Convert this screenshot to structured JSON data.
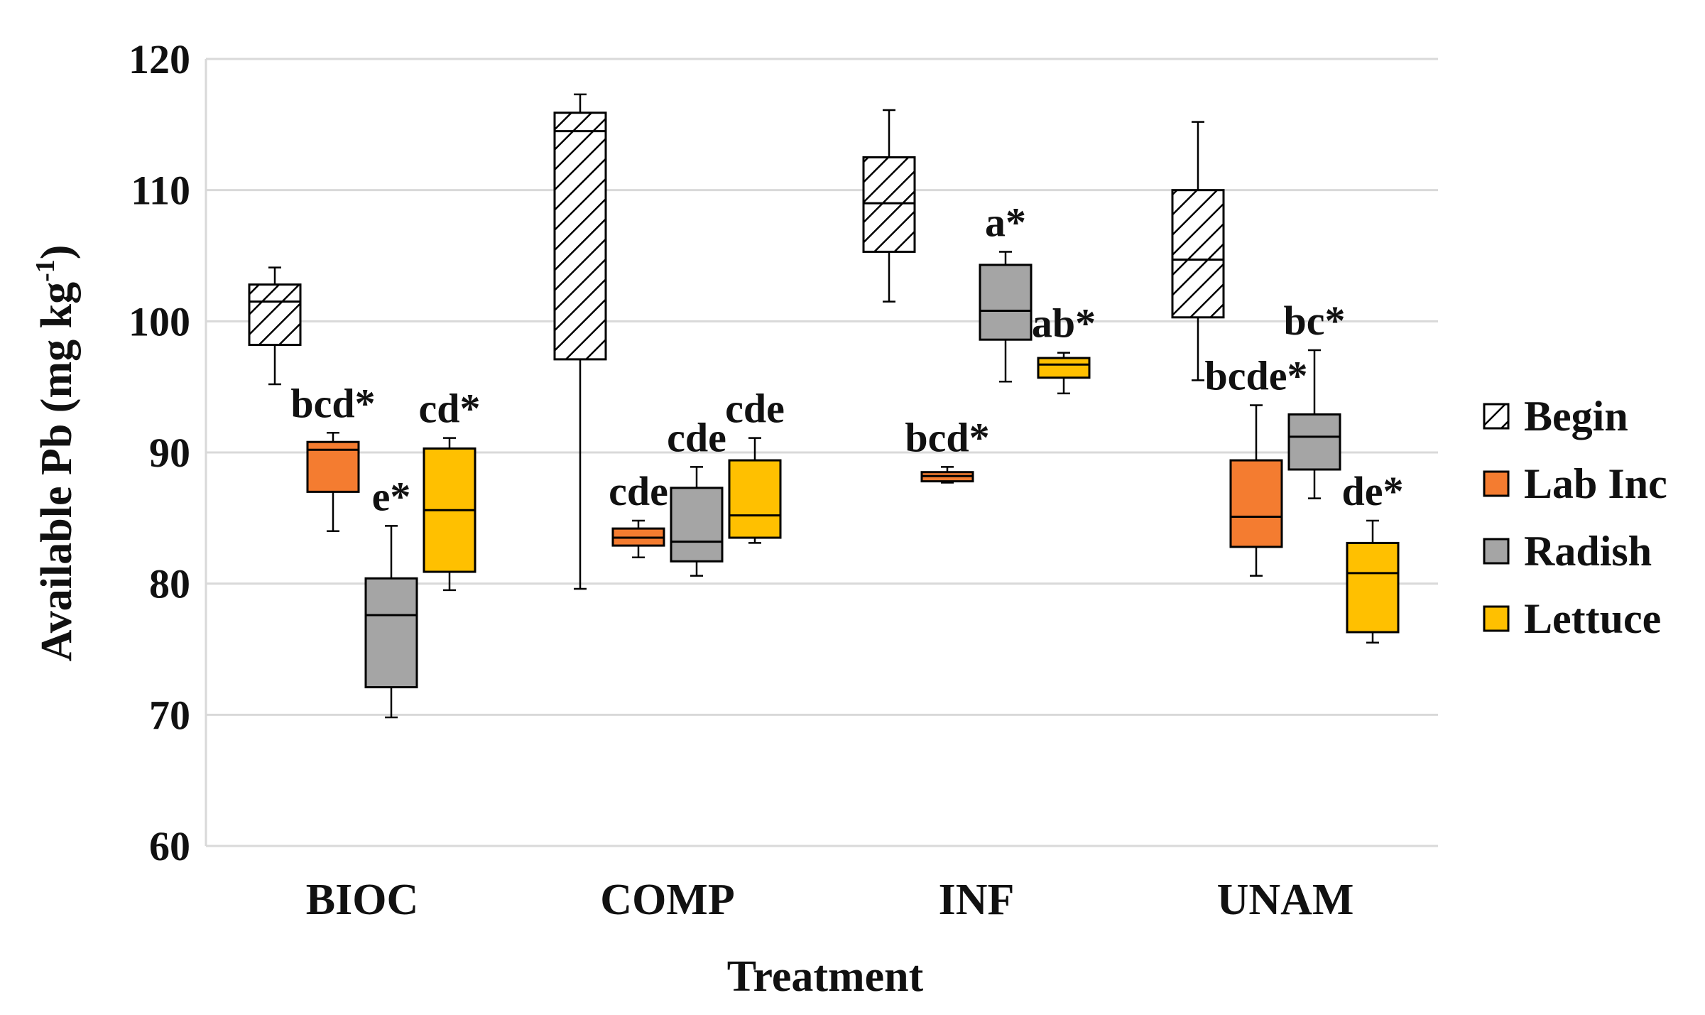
{
  "chart_data": {
    "type": "boxplot",
    "title": "",
    "xlabel": "Treatment",
    "ylabel": "Available Pb (mg kg",
    "ylabel_superscript": "-1",
    "ylabel_suffix": ")",
    "ylim": [
      60,
      120
    ],
    "yticks": [
      60,
      70,
      80,
      90,
      100,
      110,
      120
    ],
    "ytick_labels": [
      "60",
      "70",
      "80",
      "90",
      "100",
      "110",
      "120"
    ],
    "grid": true,
    "legend_position": "right",
    "categories": [
      "BIOC",
      "COMP",
      "INF",
      "UNAM"
    ],
    "series": [
      {
        "name": "Begin",
        "fill": "hatch",
        "color": "#ffffff",
        "boxes": [
          {
            "category": "BIOC",
            "min": 95.2,
            "q1": 98.2,
            "median": 101.5,
            "q3": 102.8,
            "max": 104.1,
            "label": ""
          },
          {
            "category": "COMP",
            "min": 79.6,
            "q1": 97.1,
            "median": 114.5,
            "q3": 115.9,
            "max": 117.3,
            "label": ""
          },
          {
            "category": "INF",
            "min": 101.5,
            "q1": 105.3,
            "median": 109.0,
            "q3": 112.5,
            "max": 116.1,
            "label": ""
          },
          {
            "category": "UNAM",
            "min": 95.5,
            "q1": 100.3,
            "median": 104.7,
            "q3": 110.0,
            "max": 115.2,
            "label": ""
          }
        ]
      },
      {
        "name": "Lab Inc",
        "fill": "solid",
        "color": "#f47c30",
        "boxes": [
          {
            "category": "BIOC",
            "min": 84.0,
            "q1": 87.0,
            "median": 90.2,
            "q3": 90.8,
            "max": 91.5,
            "label": "bcd*"
          },
          {
            "category": "COMP",
            "min": 82.0,
            "q1": 82.9,
            "median": 83.5,
            "q3": 84.2,
            "max": 84.8,
            "label": "cde"
          },
          {
            "category": "INF",
            "min": 87.7,
            "q1": 87.8,
            "median": 88.2,
            "q3": 88.5,
            "max": 88.9,
            "label": "bcd*"
          },
          {
            "category": "UNAM",
            "min": 80.6,
            "q1": 82.8,
            "median": 85.1,
            "q3": 89.4,
            "max": 93.6,
            "label": "bcde*"
          }
        ]
      },
      {
        "name": "Radish",
        "fill": "solid",
        "color": "#a5a5a5",
        "boxes": [
          {
            "category": "BIOC",
            "min": 69.8,
            "q1": 72.1,
            "median": 77.6,
            "q3": 80.4,
            "max": 84.4,
            "label": "e*"
          },
          {
            "category": "COMP",
            "min": 80.6,
            "q1": 81.7,
            "median": 83.2,
            "q3": 87.3,
            "max": 88.9,
            "label": "cde"
          },
          {
            "category": "INF",
            "min": 95.4,
            "q1": 98.6,
            "median": 100.8,
            "q3": 104.3,
            "max": 105.3,
            "label": "a*"
          },
          {
            "category": "UNAM",
            "min": 86.5,
            "q1": 88.7,
            "median": 91.2,
            "q3": 92.9,
            "max": 97.8,
            "label": "bc*"
          }
        ]
      },
      {
        "name": "Lettuce",
        "fill": "solid",
        "color": "#ffc000",
        "boxes": [
          {
            "category": "BIOC",
            "min": 79.5,
            "q1": 80.9,
            "median": 85.6,
            "q3": 90.3,
            "max": 91.1,
            "label": "cd*"
          },
          {
            "category": "COMP",
            "min": 83.1,
            "q1": 83.5,
            "median": 85.2,
            "q3": 89.4,
            "max": 91.1,
            "label": "cde"
          },
          {
            "category": "INF",
            "min": 94.5,
            "q1": 95.7,
            "median": 96.7,
            "q3": 97.2,
            "max": 97.6,
            "label": "ab*"
          },
          {
            "category": "UNAM",
            "min": 75.5,
            "q1": 76.3,
            "median": 80.8,
            "q3": 83.1,
            "max": 84.8,
            "label": "de*"
          }
        ]
      }
    ]
  }
}
